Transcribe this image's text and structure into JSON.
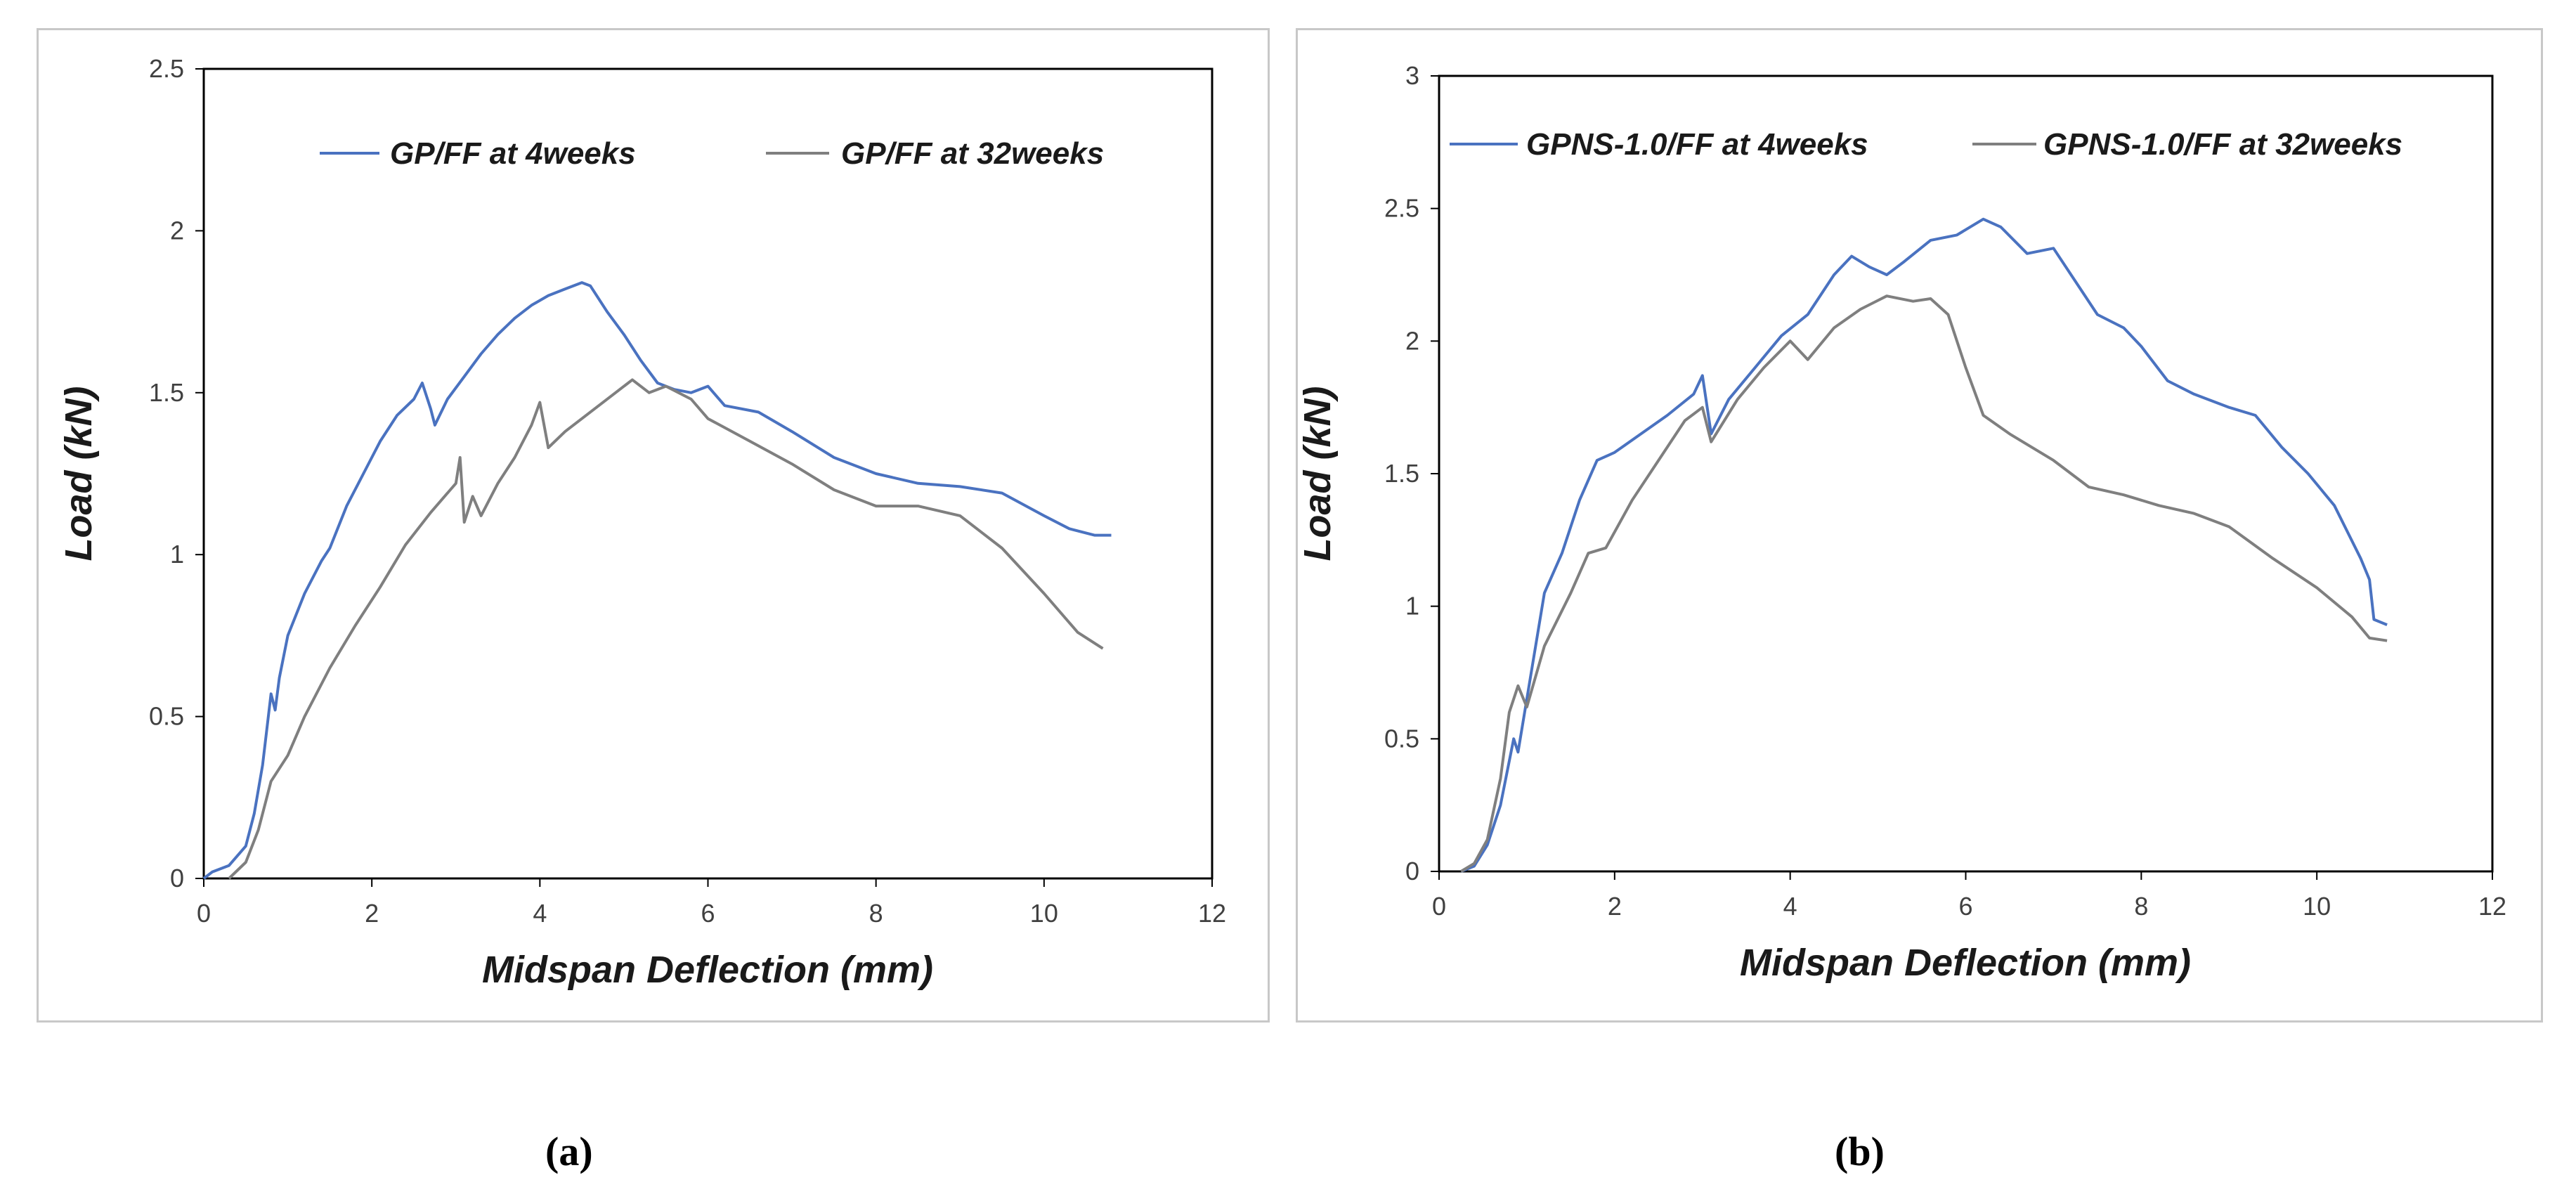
{
  "chart_data": [
    {
      "type": "line",
      "panel_label": "(a)",
      "xlabel": "Midspan Deflection (mm)",
      "ylabel": "Load (kN)",
      "xlim": [
        0,
        12
      ],
      "ylim": [
        0,
        2.5
      ],
      "xticks": [
        0,
        2,
        4,
        6,
        8,
        10,
        12
      ],
      "yticks": [
        0,
        0.5,
        1,
        1.5,
        2,
        2.5
      ],
      "xtick_labels": [
        "0",
        "2",
        "4",
        "6",
        "8",
        "10",
        "12"
      ],
      "ytick_labels": [
        "0",
        "0.5",
        "1",
        "1.5",
        "2",
        "2.5"
      ],
      "legend_position": "top",
      "grid": false,
      "series": [
        {
          "name": "GP/FF at 4weeks",
          "color": "#4a72c0",
          "points": [
            [
              0,
              0
            ],
            [
              0.1,
              0.02
            ],
            [
              0.3,
              0.04
            ],
            [
              0.5,
              0.1
            ],
            [
              0.6,
              0.2
            ],
            [
              0.7,
              0.35
            ],
            [
              0.8,
              0.57
            ],
            [
              0.85,
              0.52
            ],
            [
              0.9,
              0.62
            ],
            [
              1.0,
              0.75
            ],
            [
              1.2,
              0.88
            ],
            [
              1.4,
              0.98
            ],
            [
              1.5,
              1.02
            ],
            [
              1.7,
              1.15
            ],
            [
              1.9,
              1.25
            ],
            [
              2.1,
              1.35
            ],
            [
              2.3,
              1.43
            ],
            [
              2.5,
              1.48
            ],
            [
              2.6,
              1.53
            ],
            [
              2.7,
              1.45
            ],
            [
              2.75,
              1.4
            ],
            [
              2.9,
              1.48
            ],
            [
              3.1,
              1.55
            ],
            [
              3.3,
              1.62
            ],
            [
              3.5,
              1.68
            ],
            [
              3.7,
              1.73
            ],
            [
              3.9,
              1.77
            ],
            [
              4.1,
              1.8
            ],
            [
              4.3,
              1.82
            ],
            [
              4.5,
              1.84
            ],
            [
              4.6,
              1.83
            ],
            [
              4.8,
              1.75
            ],
            [
              5.0,
              1.68
            ],
            [
              5.2,
              1.6
            ],
            [
              5.4,
              1.53
            ],
            [
              5.6,
              1.51
            ],
            [
              5.8,
              1.5
            ],
            [
              6.0,
              1.52
            ],
            [
              6.2,
              1.46
            ],
            [
              6.6,
              1.44
            ],
            [
              7.0,
              1.38
            ],
            [
              7.5,
              1.3
            ],
            [
              8.0,
              1.25
            ],
            [
              8.5,
              1.22
            ],
            [
              9.0,
              1.21
            ],
            [
              9.5,
              1.19
            ],
            [
              10.0,
              1.12
            ],
            [
              10.3,
              1.08
            ],
            [
              10.6,
              1.06
            ],
            [
              10.8,
              1.06
            ]
          ]
        },
        {
          "name": "GP/FF at 32weeks",
          "color": "#7f7f7f",
          "points": [
            [
              0.3,
              0
            ],
            [
              0.5,
              0.05
            ],
            [
              0.65,
              0.15
            ],
            [
              0.8,
              0.3
            ],
            [
              1.0,
              0.38
            ],
            [
              1.2,
              0.5
            ],
            [
              1.5,
              0.65
            ],
            [
              1.8,
              0.78
            ],
            [
              2.1,
              0.9
            ],
            [
              2.4,
              1.03
            ],
            [
              2.7,
              1.13
            ],
            [
              3.0,
              1.22
            ],
            [
              3.05,
              1.3
            ],
            [
              3.1,
              1.1
            ],
            [
              3.2,
              1.18
            ],
            [
              3.3,
              1.12
            ],
            [
              3.5,
              1.22
            ],
            [
              3.7,
              1.3
            ],
            [
              3.9,
              1.4
            ],
            [
              4.0,
              1.47
            ],
            [
              4.1,
              1.33
            ],
            [
              4.3,
              1.38
            ],
            [
              4.6,
              1.44
            ],
            [
              4.9,
              1.5
            ],
            [
              5.1,
              1.54
            ],
            [
              5.3,
              1.5
            ],
            [
              5.5,
              1.52
            ],
            [
              5.8,
              1.48
            ],
            [
              6.0,
              1.42
            ],
            [
              6.5,
              1.35
            ],
            [
              7.0,
              1.28
            ],
            [
              7.5,
              1.2
            ],
            [
              8.0,
              1.15
            ],
            [
              8.5,
              1.15
            ],
            [
              9.0,
              1.12
            ],
            [
              9.5,
              1.02
            ],
            [
              10.0,
              0.88
            ],
            [
              10.4,
              0.76
            ],
            [
              10.7,
              0.71
            ]
          ]
        }
      ]
    },
    {
      "type": "line",
      "panel_label": "(b)",
      "xlabel": "Midspan Deflection (mm)",
      "ylabel": "Load (kN)",
      "xlim": [
        0,
        12
      ],
      "ylim": [
        0,
        3
      ],
      "xticks": [
        0,
        2,
        4,
        6,
        8,
        10,
        12
      ],
      "yticks": [
        0,
        0.5,
        1,
        1.5,
        2,
        2.5,
        3
      ],
      "xtick_labels": [
        "0",
        "2",
        "4",
        "6",
        "8",
        "10",
        "12"
      ],
      "ytick_labels": [
        "0",
        "0.5",
        "1",
        "1.5",
        "2",
        "2.5",
        "3"
      ],
      "legend_position": "top",
      "grid": false,
      "series": [
        {
          "name": "GPNS-1.0/FF at 4weeks",
          "color": "#4a72c0",
          "points": [
            [
              0.25,
              0
            ],
            [
              0.4,
              0.02
            ],
            [
              0.55,
              0.1
            ],
            [
              0.7,
              0.25
            ],
            [
              0.85,
              0.5
            ],
            [
              0.9,
              0.45
            ],
            [
              1.0,
              0.65
            ],
            [
              1.1,
              0.85
            ],
            [
              1.2,
              1.05
            ],
            [
              1.4,
              1.2
            ],
            [
              1.6,
              1.4
            ],
            [
              1.8,
              1.55
            ],
            [
              2.0,
              1.58
            ],
            [
              2.3,
              1.65
            ],
            [
              2.6,
              1.72
            ],
            [
              2.9,
              1.8
            ],
            [
              3.0,
              1.87
            ],
            [
              3.1,
              1.65
            ],
            [
              3.3,
              1.78
            ],
            [
              3.6,
              1.9
            ],
            [
              3.9,
              2.02
            ],
            [
              4.2,
              2.1
            ],
            [
              4.5,
              2.25
            ],
            [
              4.7,
              2.32
            ],
            [
              4.9,
              2.28
            ],
            [
              5.1,
              2.25
            ],
            [
              5.3,
              2.3
            ],
            [
              5.6,
              2.38
            ],
            [
              5.9,
              2.4
            ],
            [
              6.2,
              2.46
            ],
            [
              6.4,
              2.43
            ],
            [
              6.7,
              2.33
            ],
            [
              7.0,
              2.35
            ],
            [
              7.2,
              2.25
            ],
            [
              7.5,
              2.1
            ],
            [
              7.8,
              2.05
            ],
            [
              8.0,
              1.98
            ],
            [
              8.3,
              1.85
            ],
            [
              8.6,
              1.8
            ],
            [
              9.0,
              1.75
            ],
            [
              9.3,
              1.72
            ],
            [
              9.6,
              1.6
            ],
            [
              9.9,
              1.5
            ],
            [
              10.2,
              1.38
            ],
            [
              10.5,
              1.18
            ],
            [
              10.6,
              1.1
            ],
            [
              10.65,
              0.95
            ],
            [
              10.8,
              0.93
            ]
          ]
        },
        {
          "name": "GPNS-1.0/FF at 32weeks",
          "color": "#7f7f7f",
          "points": [
            [
              0.25,
              0
            ],
            [
              0.4,
              0.03
            ],
            [
              0.55,
              0.12
            ],
            [
              0.7,
              0.35
            ],
            [
              0.8,
              0.6
            ],
            [
              0.9,
              0.7
            ],
            [
              1.0,
              0.62
            ],
            [
              1.2,
              0.85
            ],
            [
              1.5,
              1.05
            ],
            [
              1.7,
              1.2
            ],
            [
              1.9,
              1.22
            ],
            [
              2.2,
              1.4
            ],
            [
              2.5,
              1.55
            ],
            [
              2.8,
              1.7
            ],
            [
              3.0,
              1.75
            ],
            [
              3.1,
              1.62
            ],
            [
              3.4,
              1.78
            ],
            [
              3.7,
              1.9
            ],
            [
              4.0,
              2.0
            ],
            [
              4.2,
              1.93
            ],
            [
              4.5,
              2.05
            ],
            [
              4.8,
              2.12
            ],
            [
              5.1,
              2.17
            ],
            [
              5.4,
              2.15
            ],
            [
              5.6,
              2.16
            ],
            [
              5.8,
              2.1
            ],
            [
              6.0,
              1.9
            ],
            [
              6.2,
              1.72
            ],
            [
              6.5,
              1.65
            ],
            [
              7.0,
              1.55
            ],
            [
              7.4,
              1.45
            ],
            [
              7.8,
              1.42
            ],
            [
              8.2,
              1.38
            ],
            [
              8.6,
              1.35
            ],
            [
              9.0,
              1.3
            ],
            [
              9.5,
              1.18
            ],
            [
              10.0,
              1.07
            ],
            [
              10.4,
              0.96
            ],
            [
              10.6,
              0.88
            ],
            [
              10.8,
              0.87
            ]
          ]
        }
      ]
    }
  ]
}
